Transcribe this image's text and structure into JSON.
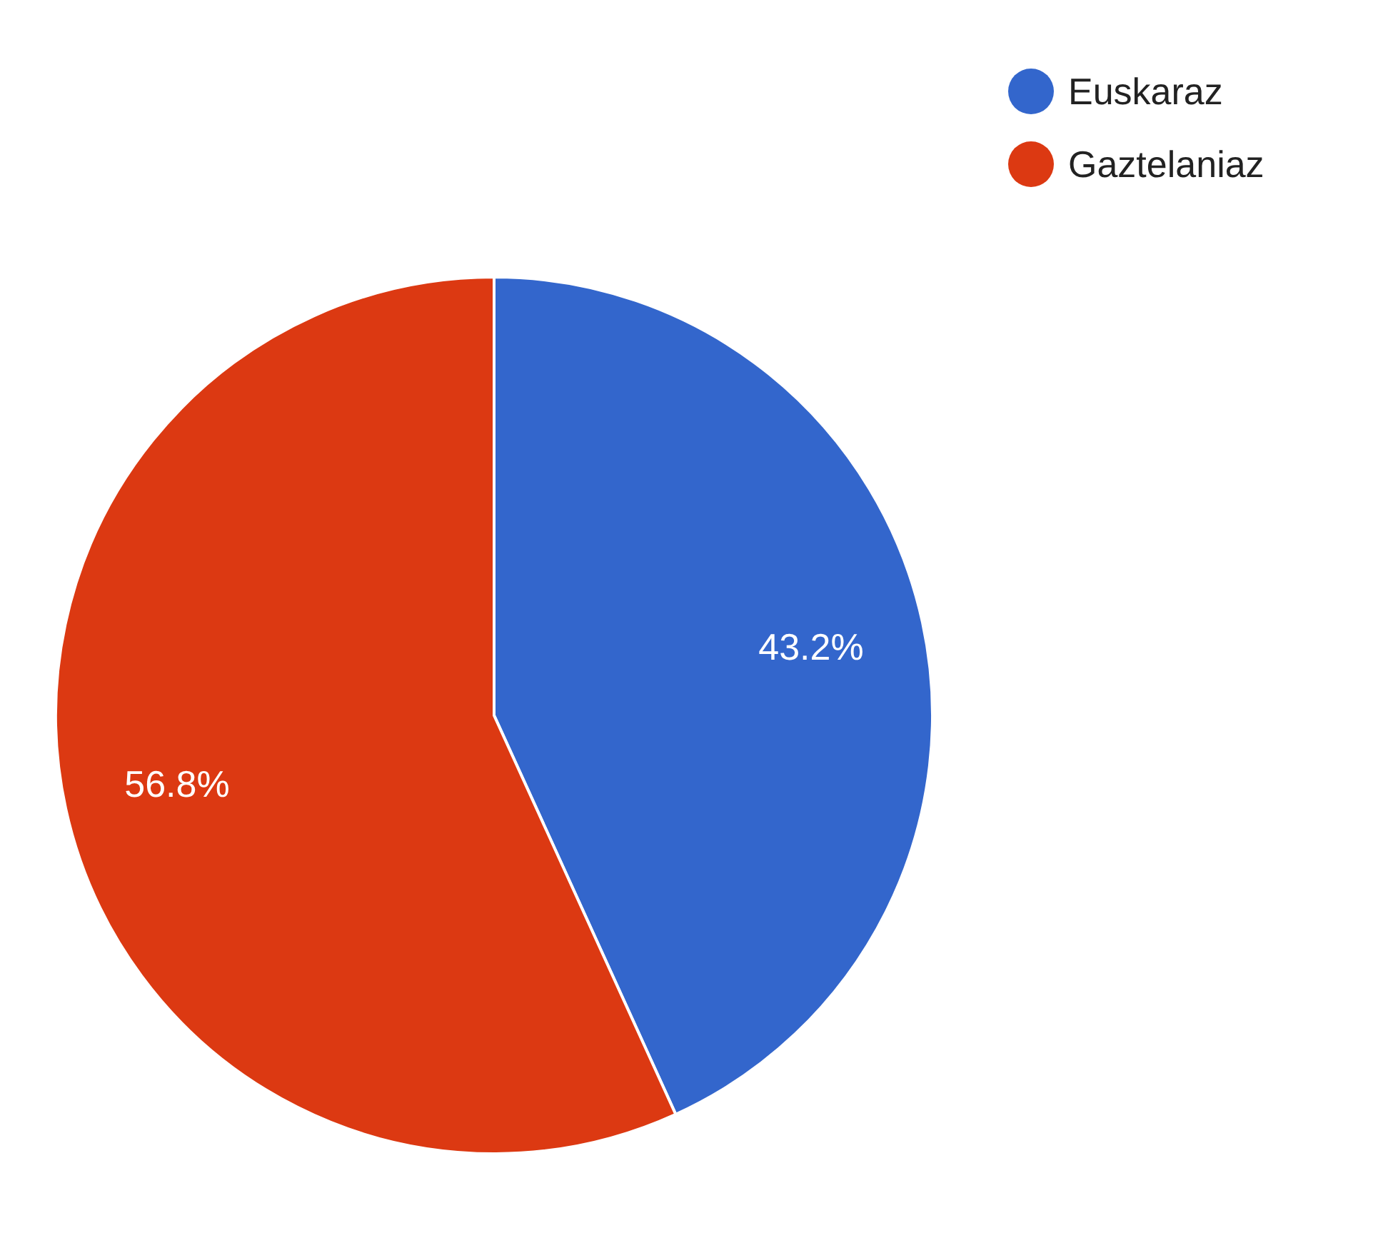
{
  "chart_data": {
    "type": "pie",
    "categories": [
      "Euskaraz",
      "Gaztelaniaz"
    ],
    "values": [
      43.2,
      56.8
    ],
    "colors": [
      "#3366cc",
      "#dc3912"
    ],
    "value_labels": [
      "43.2%",
      "56.8%"
    ],
    "legend": "top right"
  }
}
